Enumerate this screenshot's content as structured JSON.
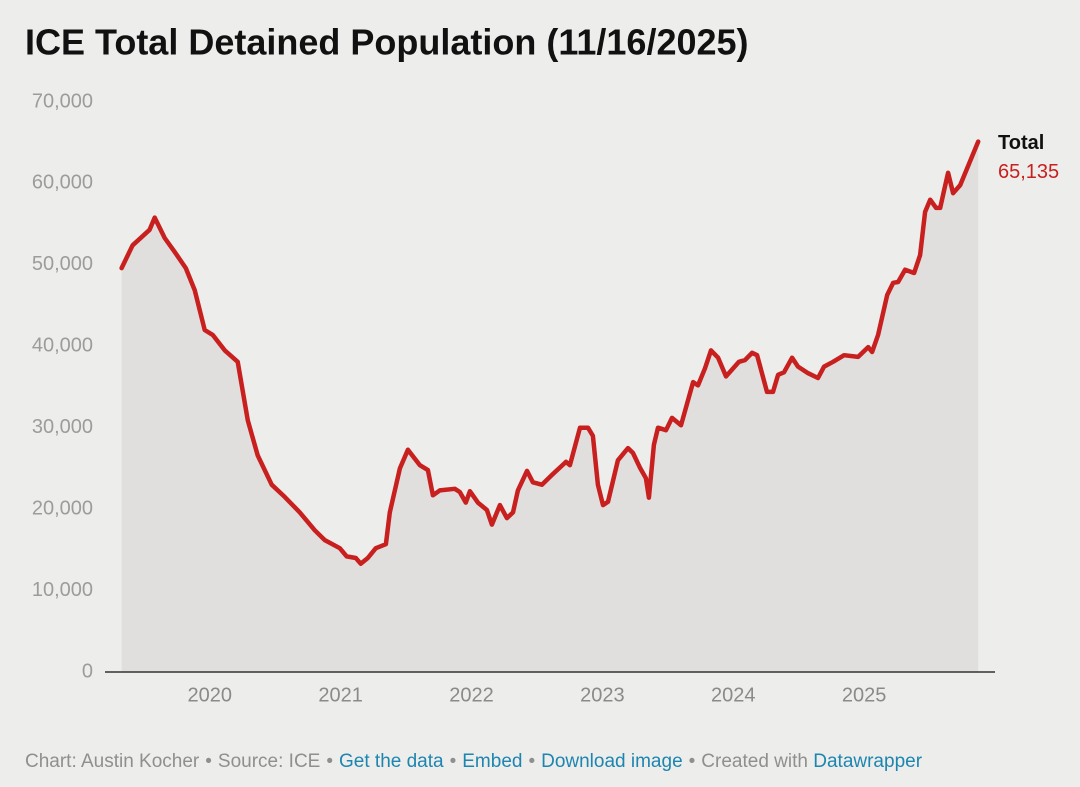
{
  "chart_data": {
    "type": "line",
    "title": "ICE Total Detained Population (11/16/2025)",
    "x": [
      2019.327,
      2019.411,
      2019.541,
      2019.58,
      2019.656,
      2019.732,
      2019.817,
      2019.885,
      2019.962,
      2020.023,
      2020.115,
      2020.214,
      2020.291,
      2020.367,
      2020.474,
      2020.573,
      2020.688,
      2020.803,
      2020.879,
      2020.994,
      2021.047,
      2021.116,
      2021.154,
      2021.208,
      2021.269,
      2021.346,
      2021.376,
      2021.453,
      2021.514,
      2021.606,
      2021.667,
      2021.705,
      2021.758,
      2021.873,
      2021.911,
      2021.957,
      2021.988,
      2022.049,
      2022.118,
      2022.156,
      2022.217,
      2022.271,
      2022.317,
      2022.355,
      2022.424,
      2022.469,
      2022.538,
      2022.615,
      2022.722,
      2022.752,
      2022.829,
      2022.89,
      2022.928,
      2022.966,
      2023.005,
      2023.043,
      2023.119,
      2023.196,
      2023.234,
      2023.287,
      2023.333,
      2023.356,
      2023.394,
      2023.425,
      2023.486,
      2023.532,
      2023.601,
      2023.693,
      2023.731,
      2023.784,
      2023.83,
      2023.884,
      2023.945,
      2024.044,
      2024.09,
      2024.144,
      2024.182,
      2024.258,
      2024.304,
      2024.343,
      2024.388,
      2024.45,
      2024.495,
      2024.572,
      2024.648,
      2024.694,
      2024.763,
      2024.847,
      2024.954,
      2025.031,
      2025.061,
      2025.107,
      2025.176,
      2025.222,
      2025.26,
      2025.313,
      2025.382,
      2025.428,
      2025.466,
      2025.505,
      2025.55,
      2025.581,
      2025.612,
      2025.642,
      2025.68,
      2025.734,
      2025.872
    ],
    "series": [
      {
        "name": "Total",
        "color": "#c8201f",
        "area": true,
        "area_color": "#e0dfdd",
        "values": [
          49600,
          52400,
          54300,
          55800,
          53300,
          51600,
          49600,
          46900,
          42000,
          41400,
          39500,
          38100,
          30900,
          26600,
          23000,
          21500,
          19600,
          17400,
          16200,
          15200,
          14200,
          14000,
          13300,
          14000,
          15200,
          15700,
          19600,
          25000,
          27300,
          25400,
          24800,
          21700,
          22300,
          22500,
          22100,
          20800,
          22200,
          20800,
          19900,
          18100,
          20500,
          18900,
          19600,
          22300,
          24700,
          23300,
          23000,
          24200,
          25800,
          25400,
          30000,
          30000,
          29000,
          23000,
          20500,
          20900,
          26000,
          27500,
          26900,
          25100,
          23800,
          21400,
          27900,
          30000,
          29700,
          31200,
          30300,
          35600,
          35200,
          37300,
          39500,
          38600,
          36300,
          38100,
          38300,
          39200,
          38900,
          34400,
          34400,
          36500,
          36800,
          38600,
          37500,
          36700,
          36100,
          37500,
          38100,
          38900,
          38700,
          39900,
          39300,
          41400,
          46300,
          47800,
          47900,
          49400,
          49000,
          51200,
          56500,
          58000,
          57000,
          57000,
          59200,
          61300,
          58800,
          59800,
          65135
        ],
        "value_labels": [
          null,
          null,
          null,
          null,
          null,
          null,
          null,
          null,
          null,
          null,
          null,
          null,
          null,
          null,
          null,
          null,
          null,
          null,
          null,
          null,
          null,
          null,
          null,
          null,
          null,
          null,
          null,
          null,
          null,
          null,
          null,
          null,
          null,
          null,
          null,
          null,
          null,
          null,
          null,
          null,
          null,
          null,
          null,
          null,
          null,
          null,
          null,
          null,
          null,
          null,
          null,
          null,
          null,
          null,
          null,
          null,
          null,
          null,
          null,
          null,
          null,
          null,
          null,
          null,
          null,
          null,
          null,
          null,
          null,
          null,
          null,
          null,
          null,
          null,
          null,
          null,
          null,
          null,
          null,
          null,
          null,
          null,
          null,
          null,
          null,
          null,
          null,
          null,
          null,
          null,
          null,
          null,
          null,
          null,
          null,
          null,
          null,
          null,
          null,
          null,
          null,
          null,
          null,
          null,
          null,
          null,
          "65,135"
        ]
      }
    ],
    "xlim": [
      2019.2,
      2026.0
    ],
    "xticks": [
      2020,
      2021,
      2022,
      2023,
      2024,
      2025
    ],
    "ylim": [
      0,
      70000
    ],
    "yticks": [
      0,
      {
        "value": 10000,
        "label": "10,000"
      },
      {
        "value": 20000,
        "label": "20,000"
      },
      {
        "value": 30000,
        "label": "30,000"
      },
      {
        "value": 40000,
        "label": "40,000"
      },
      {
        "value": 50000,
        "label": "50,000"
      },
      {
        "value": 60000,
        "label": "60,000"
      },
      {
        "value": 70000,
        "label": "70,000"
      }
    ],
    "grid": false
  },
  "footer": {
    "credit": "Chart: Austin Kocher",
    "separator": "•",
    "source": "Source: ICE",
    "links": [
      "Get the data",
      "Embed",
      "Download image"
    ],
    "created": "Created with",
    "tool": "Datawrapper"
  }
}
